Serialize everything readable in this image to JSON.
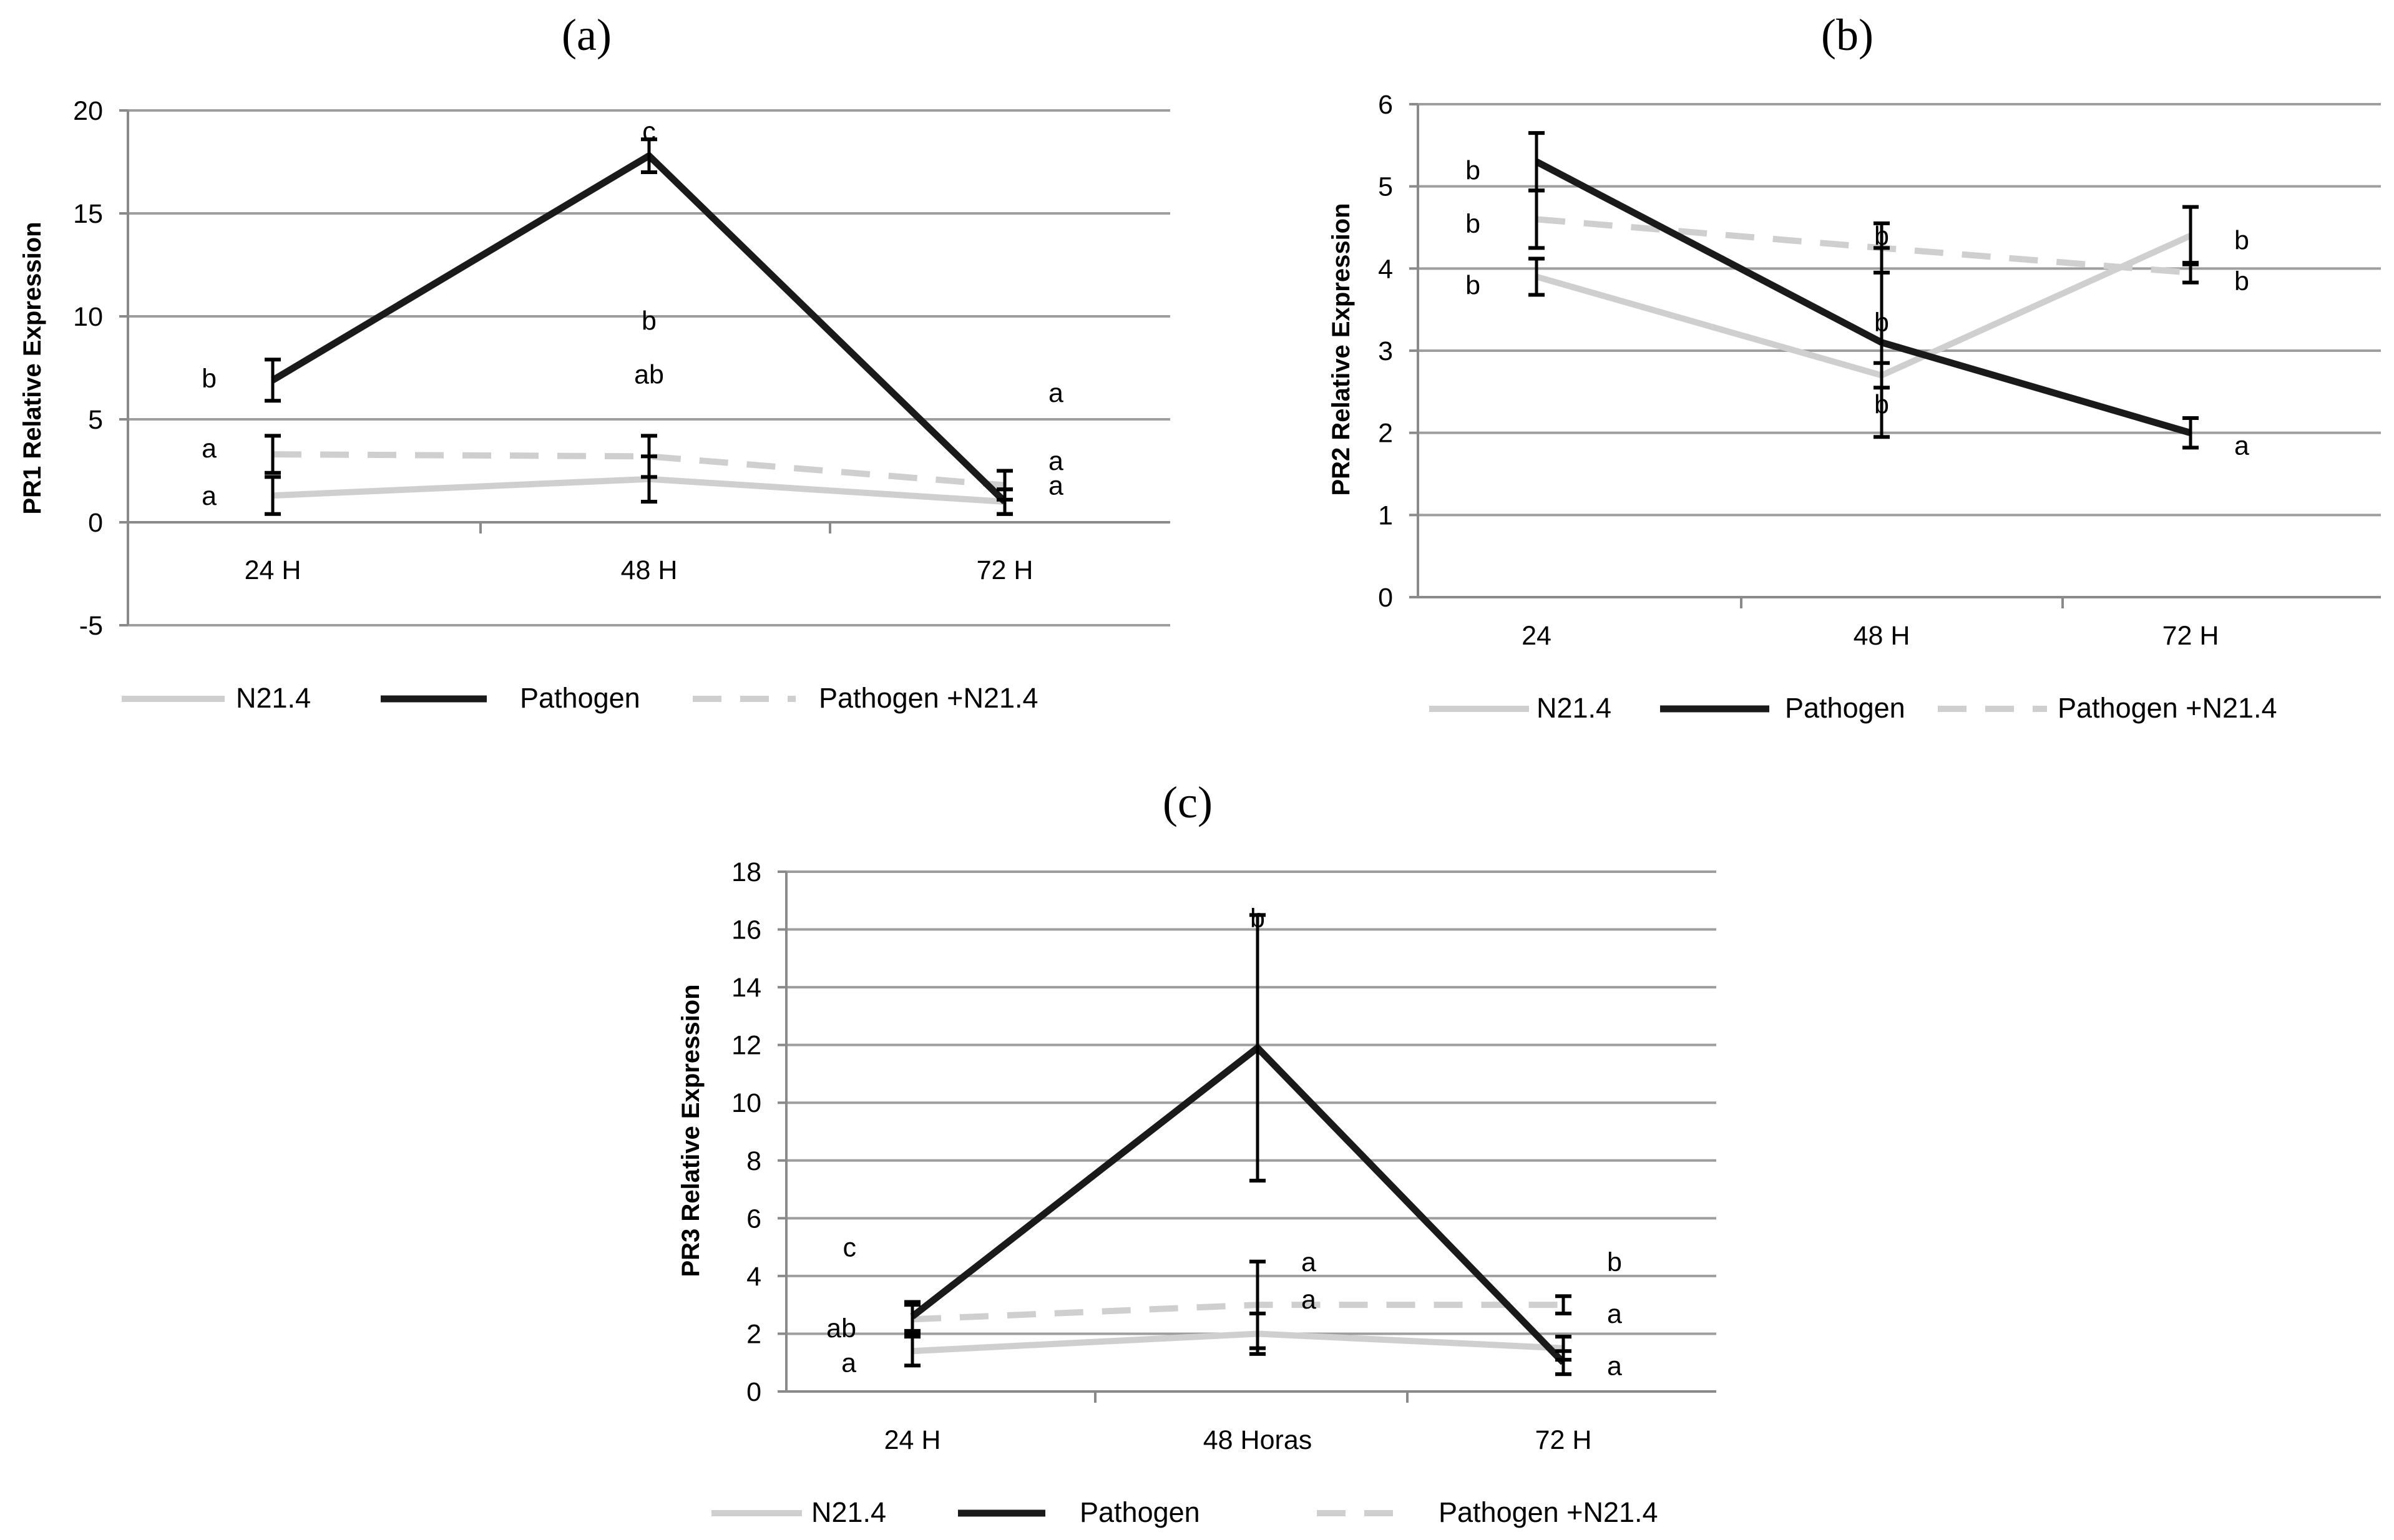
{
  "chart_data": [
    {
      "panel": "(a)",
      "type": "line",
      "ylabel": "PR1 Relative  Expression",
      "categories": [
        "24 H",
        "48 H",
        "72 H"
      ],
      "ylim": [
        -5,
        20
      ],
      "yticks": [
        -5,
        0,
        5,
        10,
        15,
        20
      ],
      "ytick_labels": [
        "-5",
        "0",
        "5",
        "10",
        "15",
        "20"
      ],
      "series": [
        {
          "name": "N21.4",
          "color": "#cfcfcf",
          "dash": false,
          "width": 10,
          "values": [
            1.3,
            2.1,
            1.0
          ],
          "err": [
            0.9,
            1.1,
            0.6
          ]
        },
        {
          "name": "Pathogen",
          "color": "#1a1a1a",
          "dash": false,
          "width": 11,
          "values": [
            6.9,
            17.8,
            1.0
          ],
          "err": [
            1.0,
            0.8,
            0.6
          ]
        },
        {
          "name": "Pathogen +N21.4",
          "color": "#cfcfcf",
          "dash": true,
          "width": 10,
          "values": [
            3.3,
            3.2,
            1.8
          ],
          "err": [
            0.9,
            1.0,
            0.7
          ]
        }
      ],
      "letters": [
        {
          "text": "b",
          "cat": 0,
          "y": 7.0,
          "side": "left"
        },
        {
          "text": "a",
          "cat": 0,
          "y": 3.6,
          "side": "left"
        },
        {
          "text": "a",
          "cat": 0,
          "y": 1.3,
          "side": "left"
        },
        {
          "text": "c",
          "cat": 1,
          "y": 19.0,
          "side": "center"
        },
        {
          "text": "b",
          "cat": 1,
          "y": 9.8,
          "side": "center"
        },
        {
          "text": "ab",
          "cat": 1,
          "y": 7.2,
          "side": "center"
        },
        {
          "text": "a",
          "cat": 2,
          "y": 6.3,
          "side": "right"
        },
        {
          "text": "a",
          "cat": 2,
          "y": 3.0,
          "side": "right"
        },
        {
          "text": "a",
          "cat": 2,
          "y": 1.8,
          "side": "right"
        }
      ]
    },
    {
      "panel": "(b)",
      "type": "line",
      "ylabel": "PR2 Relative Expression",
      "categories": [
        "24",
        "48 H",
        "72 H"
      ],
      "ylim": [
        0,
        6
      ],
      "yticks": [
        0,
        1,
        2,
        3,
        4,
        5,
        6
      ],
      "ytick_labels": [
        "0",
        "1",
        "2",
        "3",
        "4",
        "5",
        "6"
      ],
      "series": [
        {
          "name": "N21.4",
          "color": "#cfcfcf",
          "dash": false,
          "width": 10,
          "values": [
            3.9,
            2.7,
            4.4
          ],
          "err": [
            0.22,
            0.15,
            0.35
          ]
        },
        {
          "name": "Pathogen",
          "color": "#1a1a1a",
          "dash": false,
          "width": 11,
          "values": [
            5.3,
            3.1,
            2.0
          ],
          "err": [
            0.35,
            1.15,
            0.18
          ]
        },
        {
          "name": "Pathogen +N21.4",
          "color": "#cfcfcf",
          "dash": true,
          "width": 10,
          "values": [
            4.6,
            4.25,
            3.95
          ],
          "err": [
            0.35,
            0.3,
            0.12
          ]
        }
      ],
      "letters": [
        {
          "text": "b",
          "cat": 0,
          "y": 5.2,
          "side": "left"
        },
        {
          "text": "b",
          "cat": 0,
          "y": 4.55,
          "side": "left"
        },
        {
          "text": "b",
          "cat": 0,
          "y": 3.8,
          "side": "left"
        },
        {
          "text": "b",
          "cat": 1,
          "y": 4.4,
          "side": "center"
        },
        {
          "text": "b",
          "cat": 1,
          "y": 3.35,
          "side": "center"
        },
        {
          "text": "b",
          "cat": 1,
          "y": 2.35,
          "side": "center"
        },
        {
          "text": "b",
          "cat": 2,
          "y": 4.35,
          "side": "right"
        },
        {
          "text": "b",
          "cat": 2,
          "y": 3.85,
          "side": "right"
        },
        {
          "text": "a",
          "cat": 2,
          "y": 1.85,
          "side": "right"
        }
      ]
    },
    {
      "panel": "(c)",
      "type": "line",
      "ylabel": "PR3 Relative  Expression",
      "categories": [
        "24 H",
        "48 Horas",
        "72 H"
      ],
      "ylim": [
        0,
        18
      ],
      "yticks": [
        0,
        2,
        4,
        6,
        8,
        10,
        12,
        14,
        16,
        18
      ],
      "ytick_labels": [
        "0",
        "2",
        "4",
        "6",
        "8",
        "10",
        "12",
        "14",
        "16",
        "18"
      ],
      "series": [
        {
          "name": "N21.4",
          "color": "#cfcfcf",
          "dash": false,
          "width": 10,
          "values": [
            1.4,
            2.0,
            1.5
          ],
          "err": [
            0.5,
            0.7,
            0.4
          ]
        },
        {
          "name": "Pathogen",
          "color": "#1a1a1a",
          "dash": false,
          "width": 11,
          "values": [
            2.6,
            11.9,
            1.0
          ],
          "err": [
            0.5,
            4.6,
            0.4
          ]
        },
        {
          "name": "Pathogen +N21.4",
          "color": "#cfcfcf",
          "dash": true,
          "width": 10,
          "values": [
            2.5,
            3.0,
            3.0
          ],
          "err": [
            0.5,
            1.5,
            0.3
          ]
        }
      ],
      "letters": [
        {
          "text": "c",
          "cat": 0,
          "y": 5.0,
          "side": "left"
        },
        {
          "text": "ab",
          "cat": 0,
          "y": 2.2,
          "side": "left"
        },
        {
          "text": "a",
          "cat": 0,
          "y": 1.0,
          "side": "left"
        },
        {
          "text": "b",
          "cat": 1,
          "y": 16.4,
          "side": "center"
        },
        {
          "text": "a",
          "cat": 1,
          "y": 4.5,
          "side": "right"
        },
        {
          "text": "a",
          "cat": 1,
          "y": 3.2,
          "side": "right"
        },
        {
          "text": "b",
          "cat": 2,
          "y": 4.5,
          "side": "right"
        },
        {
          "text": "a",
          "cat": 2,
          "y": 2.7,
          "side": "right"
        },
        {
          "text": "a",
          "cat": 2,
          "y": 0.9,
          "side": "right"
        }
      ]
    }
  ]
}
